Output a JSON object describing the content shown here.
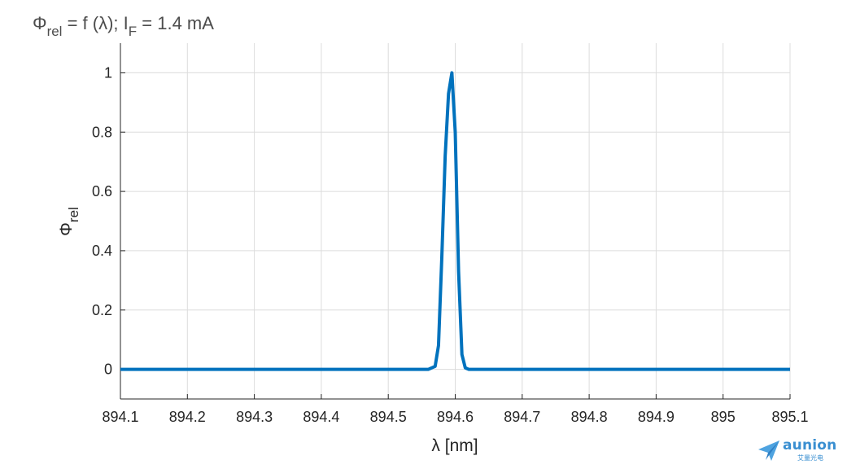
{
  "chart_data": {
    "type": "line",
    "title": {
      "base1": "Φ",
      "sub1": "rel",
      "mid": " = f (λ); I",
      "sub2": "F",
      "tail": " = 1.4 mA"
    },
    "xlabel": "λ [nm]",
    "ylabel": {
      "base": "Φ",
      "sub": "rel"
    },
    "xlim": [
      894.1,
      895.1
    ],
    "ylim": [
      -0.1,
      1.1
    ],
    "x_ticks": [
      894.1,
      894.2,
      894.3,
      894.4,
      894.5,
      894.6,
      894.7,
      894.8,
      894.9,
      895.0,
      895.1
    ],
    "x_tick_labels": [
      "894.1",
      "894.2",
      "894.3",
      "894.4",
      "894.5",
      "894.6",
      "894.7",
      "894.8",
      "894.9",
      "895",
      "895.1"
    ],
    "y_ticks": [
      0,
      0.2,
      0.4,
      0.6,
      0.8,
      1.0
    ],
    "y_tick_labels": [
      "0",
      "0.2",
      "0.4",
      "0.6",
      "0.8",
      "1"
    ],
    "grid": true,
    "line_color": "#0072bd",
    "series": [
      {
        "x": [
          894.1,
          894.56,
          894.57,
          894.575,
          894.58,
          894.585,
          894.59,
          894.595,
          894.6,
          894.605,
          894.61,
          894.615,
          894.62,
          894.63,
          895.1
        ],
        "y": [
          0,
          0,
          0.01,
          0.08,
          0.38,
          0.72,
          0.93,
          1.0,
          0.8,
          0.33,
          0.05,
          0.005,
          0,
          0,
          0
        ]
      }
    ]
  },
  "logo": {
    "name": "aunion",
    "sub": "艾量光电"
  }
}
